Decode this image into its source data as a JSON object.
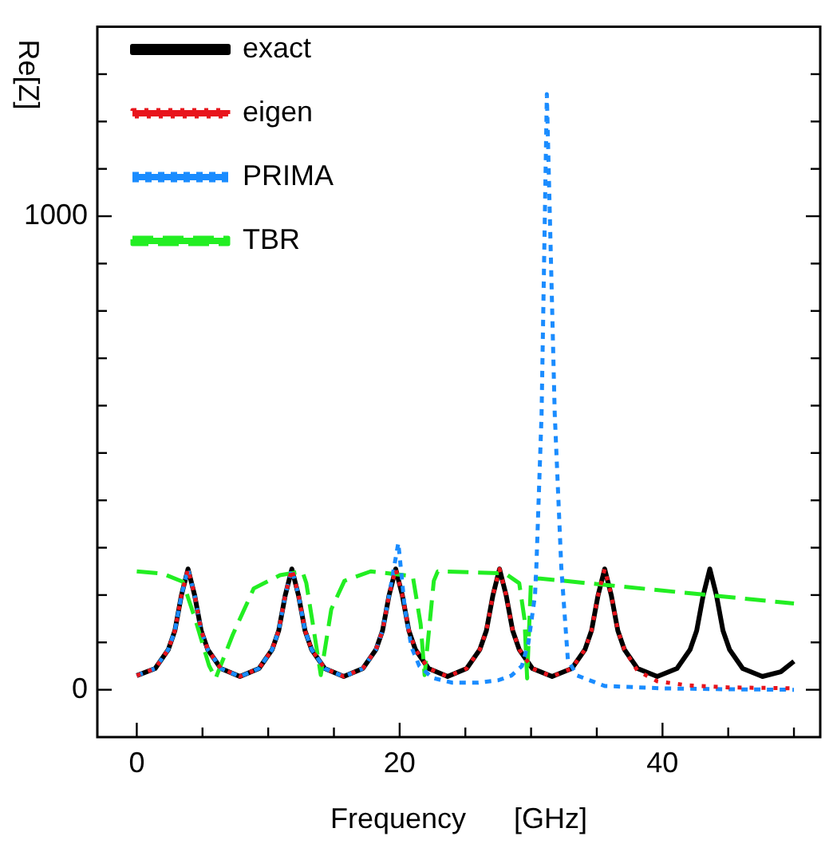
{
  "chart_data": {
    "type": "line",
    "xlabel": "Frequency      [GHz]",
    "ylabel": "Re[Z]",
    "xlim": [
      -3,
      52
    ],
    "ylim": [
      -100,
      1400
    ],
    "xticks": [
      0,
      {
        "value": 5,
        "label": null
      },
      {
        "value": 10,
        "label": null
      },
      {
        "value": 15,
        "label": null
      },
      20,
      {
        "value": 25,
        "label": null
      },
      {
        "value": 30,
        "label": null
      },
      {
        "value": 35,
        "label": null
      },
      40,
      {
        "value": 45,
        "label": null
      },
      {
        "value": 50,
        "label": null
      }
    ],
    "yticks": [
      0,
      {
        "value": 100,
        "label": null
      },
      {
        "value": 200,
        "label": null
      },
      {
        "value": 300,
        "label": null
      },
      {
        "value": 400,
        "label": null
      },
      {
        "value": 500,
        "label": null
      },
      {
        "value": 600,
        "label": null
      },
      {
        "value": 700,
        "label": null
      },
      {
        "value": 800,
        "label": null
      },
      {
        "value": 900,
        "label": null
      },
      1000,
      {
        "value": 1100,
        "label": null
      },
      {
        "value": 1200,
        "label": null
      },
      {
        "value": 1300,
        "label": null
      }
    ],
    "legend": "top left",
    "series": [
      {
        "name": "exact",
        "color": "#000000",
        "line_style": "solid",
        "x": [
          0,
          1.4,
          2.4,
          2.9,
          3.4,
          3.9,
          4.4,
          4.9,
          5.4,
          6.4,
          7.85,
          9.3,
          10.3,
          10.8,
          11.3,
          11.8,
          12.3,
          12.8,
          13.3,
          14.3,
          15.75,
          17.2,
          18.2,
          18.7,
          19.2,
          19.7,
          20.2,
          20.7,
          21.2,
          22.2,
          23.65,
          25.1,
          26.1,
          26.6,
          27.1,
          27.6,
          28.1,
          28.6,
          29.1,
          30.1,
          31.6,
          33.1,
          34.1,
          34.6,
          35.1,
          35.6,
          36.1,
          36.6,
          37.1,
          38.1,
          39.6,
          41.1,
          42.1,
          42.6,
          43.1,
          43.6,
          44.1,
          44.6,
          45.1,
          46.1,
          47.6,
          49,
          50
        ],
        "values": [
          30,
          45,
          85,
          125,
          200,
          255,
          200,
          125,
          85,
          45,
          28,
          45,
          85,
          125,
          200,
          255,
          200,
          125,
          85,
          45,
          28,
          45,
          85,
          125,
          200,
          255,
          200,
          125,
          85,
          45,
          28,
          45,
          85,
          125,
          200,
          255,
          200,
          125,
          85,
          45,
          28,
          45,
          85,
          125,
          200,
          255,
          200,
          125,
          85,
          45,
          28,
          45,
          85,
          125,
          200,
          255,
          200,
          125,
          85,
          45,
          28,
          38,
          60
        ]
      },
      {
        "name": "eigen",
        "color": "#e8141c",
        "line_style": "dotted",
        "x": [
          0,
          1.4,
          2.4,
          2.9,
          3.4,
          3.9,
          4.4,
          4.9,
          5.4,
          6.4,
          7.85,
          9.3,
          10.3,
          10.8,
          11.3,
          11.8,
          12.3,
          12.8,
          13.3,
          14.3,
          15.75,
          17.2,
          18.2,
          18.7,
          19.2,
          19.7,
          20.2,
          20.7,
          21.2,
          22.2,
          23.65,
          25.1,
          26.1,
          26.6,
          27.1,
          27.6,
          28.1,
          28.6,
          29.1,
          30.1,
          31.6,
          33.1,
          34.1,
          34.6,
          35.1,
          35.6,
          36.1,
          36.6,
          37.1,
          38.1,
          39.6,
          42,
          45,
          50
        ],
        "values": [
          30,
          45,
          85,
          125,
          200,
          255,
          200,
          125,
          85,
          45,
          28,
          45,
          85,
          125,
          200,
          255,
          200,
          125,
          85,
          45,
          28,
          45,
          85,
          125,
          200,
          255,
          200,
          125,
          85,
          45,
          28,
          45,
          85,
          125,
          200,
          255,
          200,
          125,
          85,
          45,
          28,
          45,
          85,
          125,
          200,
          255,
          200,
          125,
          85,
          40,
          18,
          9,
          5,
          3
        ]
      },
      {
        "name": "PRIMA",
        "color": "#1a8cff",
        "line_style": "dashed",
        "x": [
          0,
          1.4,
          2.4,
          2.9,
          3.4,
          3.9,
          4.4,
          4.9,
          5.4,
          6.4,
          7.85,
          9.3,
          10.3,
          10.8,
          11.3,
          11.8,
          12.3,
          12.8,
          13.3,
          14.3,
          15.75,
          17.2,
          18.2,
          18.7,
          19.2,
          19.9,
          20.4,
          20.9,
          21.5,
          22.5,
          24,
          26,
          27.5,
          28.5,
          29.3,
          29.8,
          30.3,
          30.4,
          30.8,
          31.2,
          31.8,
          32.3,
          32.8,
          33.5,
          35.6,
          40,
          45,
          50
        ],
        "values": [
          30,
          45,
          85,
          125,
          200,
          255,
          200,
          125,
          85,
          45,
          28,
          45,
          85,
          125,
          200,
          255,
          200,
          125,
          85,
          45,
          28,
          45,
          85,
          125,
          200,
          310,
          170,
          90,
          50,
          25,
          15,
          15,
          20,
          30,
          50,
          100,
          200,
          258,
          583,
          1258,
          583,
          258,
          63,
          30,
          8,
          3,
          1,
          0
        ]
      },
      {
        "name": "TBR",
        "color": "#22ee22",
        "line_style": "longdash",
        "x": [
          0,
          2,
          3.5,
          4.45,
          5.5,
          6,
          7.3,
          8.9,
          10.9,
          12.6,
          12.9,
          13.4,
          14,
          14.8,
          15.8,
          17.8,
          21,
          21.6,
          21.9,
          22.6,
          22.9,
          28,
          29.1,
          29.5,
          29.7,
          30,
          30.7,
          50
        ],
        "values": [
          250,
          245,
          228,
          149,
          51,
          24,
          116,
          214,
          242,
          250,
          225,
          138,
          31,
          170,
          230,
          250,
          240,
          138,
          31,
          230,
          250,
          246,
          225,
          149,
          24,
          235,
          235,
          182
        ]
      }
    ]
  }
}
